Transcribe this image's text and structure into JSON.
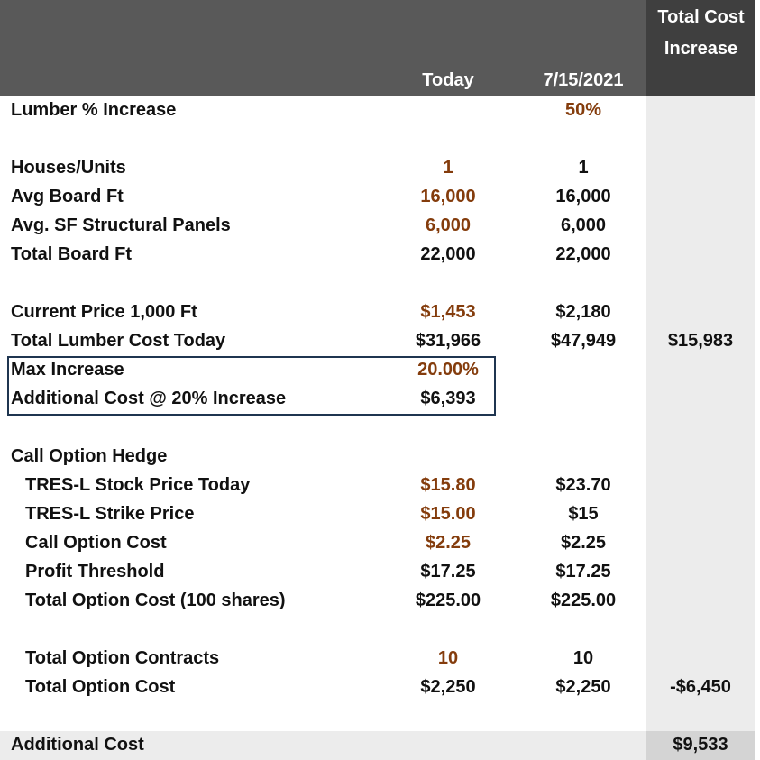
{
  "header": {
    "today": "Today",
    "future": "7/15/2021",
    "total": "Total Cost Increase"
  },
  "rows": [
    {
      "label": "Lumber % Increase",
      "future": "50%"
    },
    {
      "label": "Houses/Units",
      "today": "1",
      "future": "1"
    },
    {
      "label": "Avg Board Ft",
      "today": "16,000",
      "future": "16,000"
    },
    {
      "label": "Avg. SF Structural Panels",
      "today": "6,000",
      "future": "6,000"
    },
    {
      "label": "Total Board Ft",
      "today": "22,000",
      "future": "22,000"
    },
    {
      "label": "Current Price 1,000 Ft",
      "today": "$1,453",
      "future": "$2,180"
    },
    {
      "label": "Total Lumber Cost Today",
      "today": "$31,966",
      "future": "$47,949",
      "total": "$15,983"
    },
    {
      "label": "Max Increase",
      "today": "20.00%"
    },
    {
      "label": "Additional Cost @ 20% Increase",
      "today": "$6,393"
    },
    {
      "label": "Call Option Hedge"
    },
    {
      "label": "TRES-L Stock Price Today",
      "today": "$15.80",
      "future": "$23.70"
    },
    {
      "label": "TRES-L Strike Price",
      "today": "$15.00",
      "future": "$15"
    },
    {
      "label": "Call Option Cost",
      "today": "$2.25",
      "future": "$2.25"
    },
    {
      "label": "Profit Threshold",
      "today": "$17.25",
      "future": "$17.25"
    },
    {
      "label": "Total Option Cost (100 shares)",
      "today": "$225.00",
      "future": "$225.00"
    },
    {
      "label": "Total Option Contracts",
      "today": "10",
      "future": "10"
    },
    {
      "label": "Total Option Cost",
      "today": "$2,250",
      "future": "$2,250",
      "total": "-$6,450"
    },
    {
      "label": "Additional Cost",
      "total": "$9,533"
    }
  ]
}
